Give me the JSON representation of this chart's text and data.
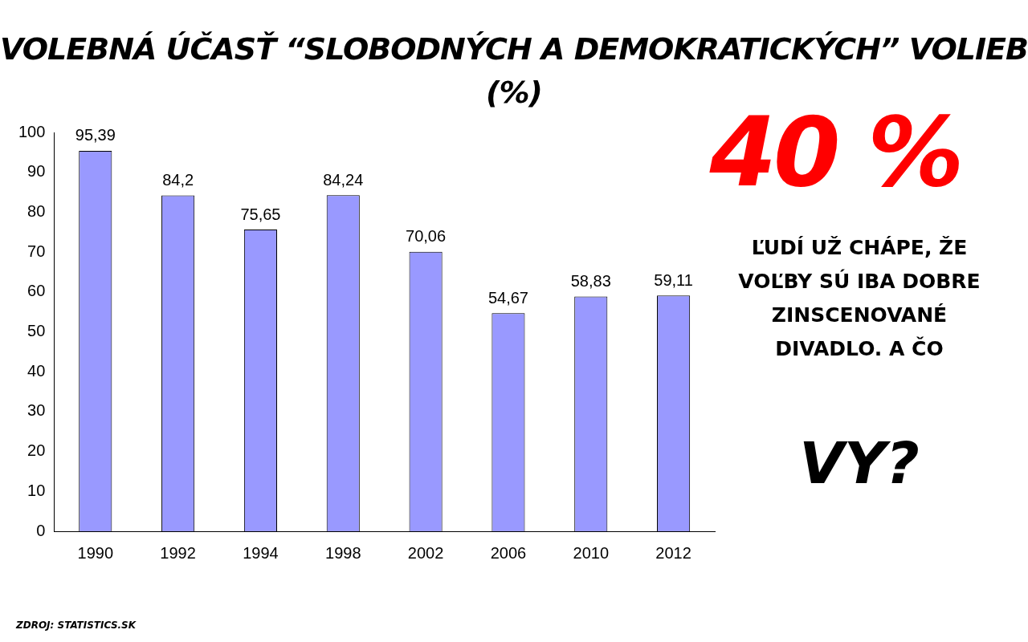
{
  "chart_data": {
    "type": "bar",
    "title": "VOLEBNÁ ÚČASŤ “SLOBODNÝCH A DEMOKRATICKÝCH” VOLIEB (%)",
    "categories": [
      "1990",
      "1992",
      "1994",
      "1998",
      "2002",
      "2006",
      "2010",
      "2012"
    ],
    "values": [
      95.39,
      84.2,
      75.65,
      84.24,
      70.06,
      54.67,
      58.83,
      59.11
    ],
    "value_labels": [
      "95,39",
      "84,2",
      "75,65",
      "84,24",
      "70,06",
      "54,67",
      "58,83",
      "59,11"
    ],
    "color": "#9999ff",
    "ylim": [
      0,
      100
    ],
    "yticks": [
      0,
      10,
      20,
      30,
      40,
      50,
      60,
      70,
      80,
      90,
      100
    ],
    "grid": false,
    "legend": false,
    "annotations": [
      "40 %",
      "ĽUDÍ UŽ CHÁPE, ŽE VOĽBY SÚ IBA DOBRE ZINSCENOVANÉ DIVADLO. A ČO",
      "VY?",
      "ZDROJ: STATISTICS.SK"
    ]
  }
}
